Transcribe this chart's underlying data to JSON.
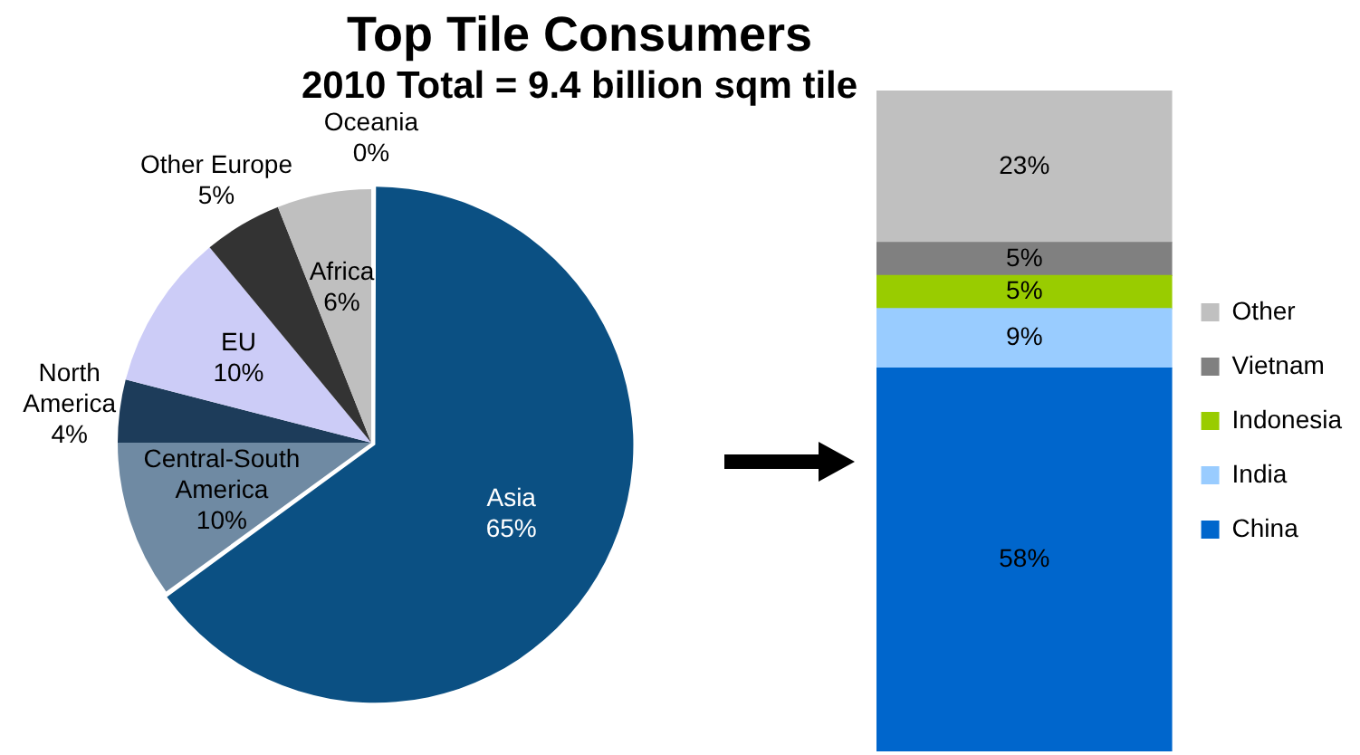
{
  "chart_data": [
    {
      "type": "pie",
      "title": "Top Tile Consumers",
      "subtitle": "2010 Total = 9.4 billion sqm tile",
      "categories": [
        "Asia",
        "Central-South America",
        "North America",
        "EU",
        "Other Europe",
        "Africa",
        "Oceania"
      ],
      "values": [
        65,
        10,
        4,
        10,
        5,
        6,
        0
      ],
      "colors": [
        "#0b5083",
        "#6f8aa3",
        "#1d3c5a",
        "#ccccf7",
        "#333333",
        "#bfbfbf",
        "#e6e6e6"
      ],
      "value_labels": [
        "65%",
        "10%",
        "4%",
        "10%",
        "5%",
        "6%",
        "0%"
      ],
      "legend": false
    },
    {
      "type": "bar",
      "stacked": true,
      "categories": [
        null
      ],
      "ylim": [
        0,
        100
      ],
      "tick_labels": false,
      "legend": "right",
      "series": [
        {
          "name": "China",
          "color": "#0066cc",
          "values": [
            58
          ],
          "value_labels": [
            "58%"
          ]
        },
        {
          "name": "India",
          "color": "#99ccff",
          "values": [
            9
          ],
          "value_labels": [
            "9%"
          ]
        },
        {
          "name": "Indonesia",
          "color": "#99cc00",
          "values": [
            5
          ],
          "value_labels": [
            "5%"
          ]
        },
        {
          "name": "Vietnam",
          "color": "#808080",
          "values": [
            5
          ],
          "value_labels": [
            "5%"
          ]
        },
        {
          "name": "Other",
          "color": "#c0c0c0",
          "values": [
            23
          ],
          "value_labels": [
            "23%"
          ]
        }
      ]
    }
  ]
}
